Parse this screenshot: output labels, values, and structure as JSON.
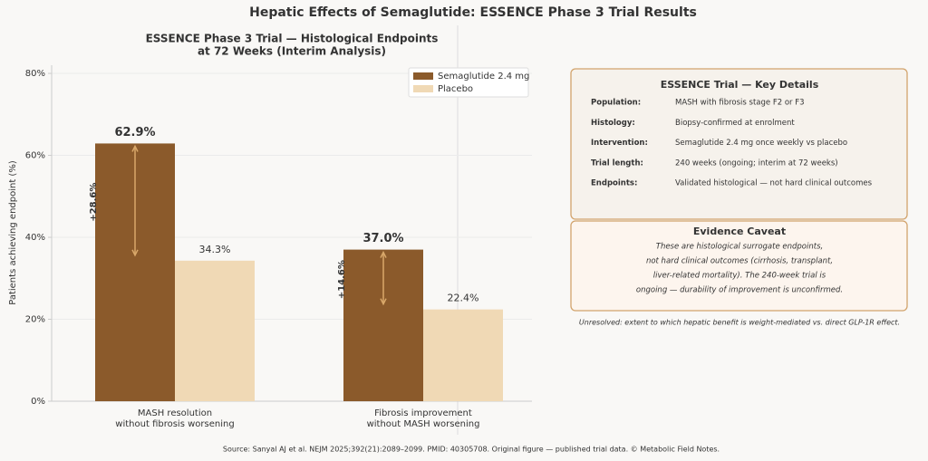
{
  "title": "Hepatic Effects of Semaglutide: ESSENCE Phase 3 Trial Results",
  "chart_data": {
    "type": "bar",
    "title": [
      "ESSENCE Phase 3 Trial — Histological Endpoints",
      "at 72 Weeks (Interim Analysis)"
    ],
    "ylabel": "Patients achieving endpoint (%)",
    "categories": [
      [
        "MASH resolution",
        "without fibrosis worsening"
      ],
      [
        "Fibrosis improvement",
        "without MASH worsening"
      ]
    ],
    "series": [
      {
        "name": "Semaglutide 2.4 mg",
        "color": "#8b5a2b",
        "values": [
          62.9,
          37.0
        ],
        "value_labels": [
          "62.9%",
          "37.0%"
        ]
      },
      {
        "name": "Placebo",
        "color": "#f0d9b5",
        "values": [
          34.3,
          22.4
        ],
        "value_labels": [
          "34.3%",
          "22.4%"
        ]
      }
    ],
    "annotations": [
      {
        "value": 28.6,
        "label": "+28.6%"
      },
      {
        "value": 14.6,
        "label": "+14.6%"
      }
    ],
    "ylim": [
      0,
      82
    ],
    "yticks": [
      {
        "value": 0,
        "label": "0%"
      },
      {
        "value": 20,
        "label": "20%"
      },
      {
        "value": 40,
        "label": "40%"
      },
      {
        "value": 60,
        "label": "60%"
      },
      {
        "value": 80,
        "label": "80%"
      }
    ],
    "grid": true,
    "legend": "upper right"
  },
  "details": {
    "title": "ESSENCE Trial — Key Details",
    "rows": [
      {
        "key": "Population:",
        "value": "MASH with fibrosis stage F2 or F3"
      },
      {
        "key": "Histology:",
        "value": "Biopsy-confirmed at enrolment"
      },
      {
        "key": "Intervention:",
        "value": "Semaglutide 2.4 mg once weekly vs placebo"
      },
      {
        "key": "Trial length:",
        "value": "240 weeks (ongoing; interim at 72 weeks)"
      },
      {
        "key": "Endpoints:",
        "value": "Validated histological — not hard clinical outcomes"
      }
    ]
  },
  "caveat": {
    "title": "Evidence Caveat",
    "lines": [
      "These are histological surrogate endpoints,",
      "not hard clinical outcomes (cirrhosis, transplant,",
      "liver-related mortality). The 240-week trial is",
      "ongoing — durability of improvement is unconfirmed."
    ]
  },
  "note": "Unresolved: extent to which hepatic benefit is weight-mediated vs. direct GLP-1R effect.",
  "source": "Source: Sanyal AJ et al. NEJM 2025;392(21):2089–2099. PMID: 40305708. Original figure — published trial data. © Metabolic Field Notes."
}
